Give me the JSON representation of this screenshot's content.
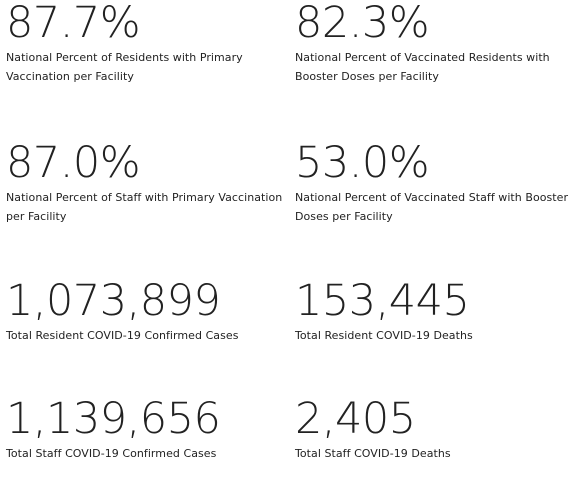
{
  "stats": [
    {
      "value": "87.7%",
      "label": "National Percent of Residents with Primary Vaccination per Facility"
    },
    {
      "value": "82.3%",
      "label": "National Percent of Vaccinated Residents with Booster Doses per Facility"
    },
    {
      "value": "87.0%",
      "label": "National Percent of Staff with Primary Vaccination per Facility"
    },
    {
      "value": "53.0%",
      "label": "National Percent of Vaccinated Staff with Booster Doses per Facility"
    },
    {
      "value": "1,073,899",
      "label": "Total Resident COVID-19 Confirmed Cases"
    },
    {
      "value": "153,445",
      "label": "Total Resident COVID-19 Deaths"
    },
    {
      "value": "1,139,656",
      "label": "Total Staff COVID-19 Confirmed Cases"
    },
    {
      "value": "2,405",
      "label": "Total Staff COVID-19 Deaths"
    }
  ]
}
